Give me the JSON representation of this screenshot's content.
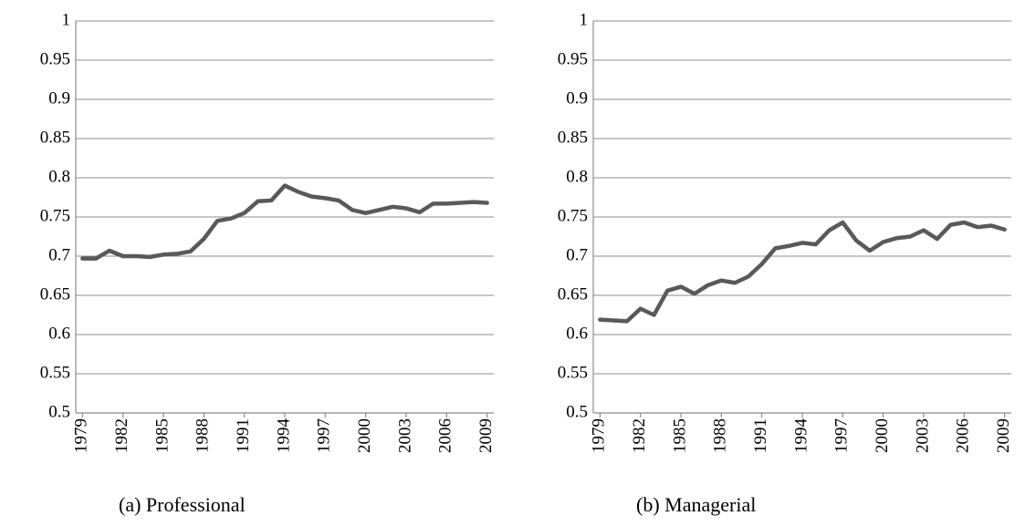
{
  "chart_data": [
    {
      "type": "line",
      "title": "(a) Professional",
      "categories": [
        "1979",
        null,
        null,
        "1982",
        null,
        null,
        "1985",
        null,
        null,
        "1988",
        null,
        null,
        "1991",
        null,
        null,
        "1994",
        null,
        null,
        "1997",
        null,
        null,
        "2000",
        null,
        null,
        "2003",
        null,
        null,
        "2006",
        null,
        null,
        "2009"
      ],
      "values": [
        0.697,
        0.697,
        0.707,
        0.7,
        0.7,
        0.699,
        0.702,
        0.703,
        0.706,
        0.722,
        0.745,
        0.748,
        0.755,
        0.77,
        0.771,
        0.79,
        0.782,
        0.776,
        0.774,
        0.771,
        0.759,
        0.755,
        0.759,
        0.763,
        0.761,
        0.756,
        0.767,
        0.767,
        0.768,
        0.769,
        0.768
      ],
      "color": "#595959",
      "ylim": [
        0.5,
        1
      ],
      "yticks": [
        0.5,
        0.55,
        0.6,
        0.65,
        0.7,
        0.75,
        0.8,
        0.85,
        0.9,
        0.95,
        1
      ],
      "grid": true
    },
    {
      "type": "line",
      "title": "(b) Managerial",
      "categories": [
        "1979",
        null,
        null,
        "1982",
        null,
        null,
        "1985",
        null,
        null,
        "1988",
        null,
        null,
        "1991",
        null,
        null,
        "1994",
        null,
        null,
        "1997",
        null,
        null,
        "2000",
        null,
        null,
        "2003",
        null,
        null,
        "2006",
        null,
        null,
        "2009"
      ],
      "values": [
        0.619,
        0.618,
        0.617,
        0.633,
        0.625,
        0.656,
        0.661,
        0.652,
        0.663,
        0.669,
        0.666,
        0.674,
        0.69,
        0.71,
        0.713,
        0.717,
        0.715,
        0.733,
        0.743,
        0.72,
        0.707,
        0.718,
        0.723,
        0.725,
        0.733,
        0.722,
        0.74,
        0.743,
        0.737,
        0.739,
        0.734
      ],
      "color": "#595959",
      "ylim": [
        0.5,
        1
      ],
      "yticks": [
        0.5,
        0.55,
        0.6,
        0.65,
        0.7,
        0.75,
        0.8,
        0.85,
        0.9,
        0.95,
        1
      ],
      "grid": true
    }
  ]
}
